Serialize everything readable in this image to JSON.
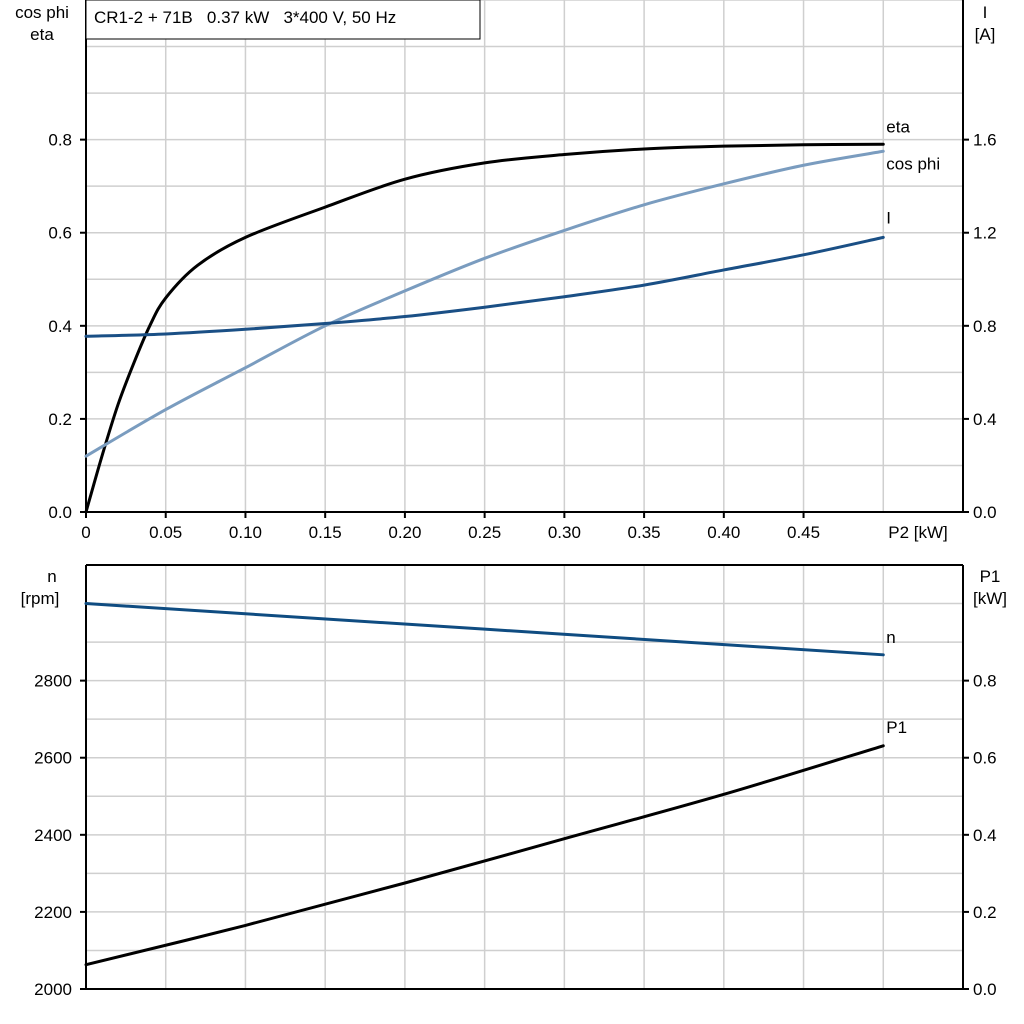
{
  "chart_data": [
    {
      "type": "line",
      "title": "CR1-2 + 71B   0.37 kW   3*400 V, 50 Hz",
      "xlabel": "P2 [kW]",
      "ylabel_left": [
        "cos phi",
        "eta"
      ],
      "ylabel_right": [
        "I",
        "[A]"
      ],
      "xlim": [
        0,
        0.55
      ],
      "ylim_left": [
        0,
        1.1
      ],
      "ylim_right": [
        0,
        2.2
      ],
      "grid": true,
      "x_ticks": [
        "0",
        "0.05",
        "0.10",
        "0.15",
        "0.20",
        "0.25",
        "0.30",
        "0.35",
        "0.40",
        "0.45"
      ],
      "x_tick_values": [
        0,
        0.05,
        0.1,
        0.15,
        0.2,
        0.25,
        0.3,
        0.35,
        0.4,
        0.45
      ],
      "y_ticks_left": [
        "0.0",
        "0.2",
        "0.4",
        "0.6",
        "0.8"
      ],
      "y_ticks_right": [
        "0.0",
        "0.4",
        "0.8",
        "1.2",
        "1.6"
      ],
      "series": [
        {
          "name": "eta",
          "axis": "left",
          "color": "#000000",
          "x": [
            0,
            0.01,
            0.02,
            0.03,
            0.04,
            0.05,
            0.07,
            0.1,
            0.15,
            0.2,
            0.25,
            0.3,
            0.35,
            0.4,
            0.45,
            0.5
          ],
          "y": [
            0,
            0.12,
            0.23,
            0.32,
            0.4,
            0.46,
            0.53,
            0.59,
            0.655,
            0.715,
            0.75,
            0.768,
            0.78,
            0.786,
            0.789,
            0.79
          ]
        },
        {
          "name": "cos phi",
          "axis": "left",
          "color": "#7a9cbf",
          "x": [
            0,
            0.05,
            0.1,
            0.15,
            0.2,
            0.25,
            0.3,
            0.35,
            0.4,
            0.45,
            0.5
          ],
          "y": [
            0.12,
            0.22,
            0.31,
            0.4,
            0.475,
            0.545,
            0.605,
            0.66,
            0.705,
            0.745,
            0.775
          ]
        },
        {
          "name": "I",
          "axis": "right",
          "color": "#1a4f85",
          "x": [
            0,
            0.05,
            0.1,
            0.15,
            0.2,
            0.25,
            0.3,
            0.35,
            0.4,
            0.45,
            0.5
          ],
          "y": [
            0.755,
            0.765,
            0.785,
            0.81,
            0.84,
            0.88,
            0.925,
            0.975,
            1.04,
            1.105,
            1.18
          ]
        }
      ]
    },
    {
      "type": "line",
      "ylabel_left": [
        "n",
        "[rpm]"
      ],
      "ylabel_right": [
        "P1",
        "[kW]"
      ],
      "xlim": [
        0,
        0.55
      ],
      "ylim_left": [
        2000,
        3100
      ],
      "ylim_right": [
        0,
        1.1
      ],
      "grid": true,
      "y_ticks_left": [
        "2000",
        "2200",
        "2400",
        "2600",
        "2800"
      ],
      "y_ticks_right": [
        "0.0",
        "0.2",
        "0.4",
        "0.6",
        "0.8"
      ],
      "series": [
        {
          "name": "n",
          "axis": "left",
          "color": "#0f4c81",
          "x": [
            0,
            0.5
          ],
          "y": [
            3000,
            2867
          ]
        },
        {
          "name": "P1",
          "axis": "right",
          "color": "#000000",
          "x": [
            0,
            0.1,
            0.2,
            0.3,
            0.4,
            0.5
          ],
          "y": [
            0.063,
            0.165,
            0.275,
            0.39,
            0.505,
            0.631
          ]
        }
      ]
    }
  ]
}
